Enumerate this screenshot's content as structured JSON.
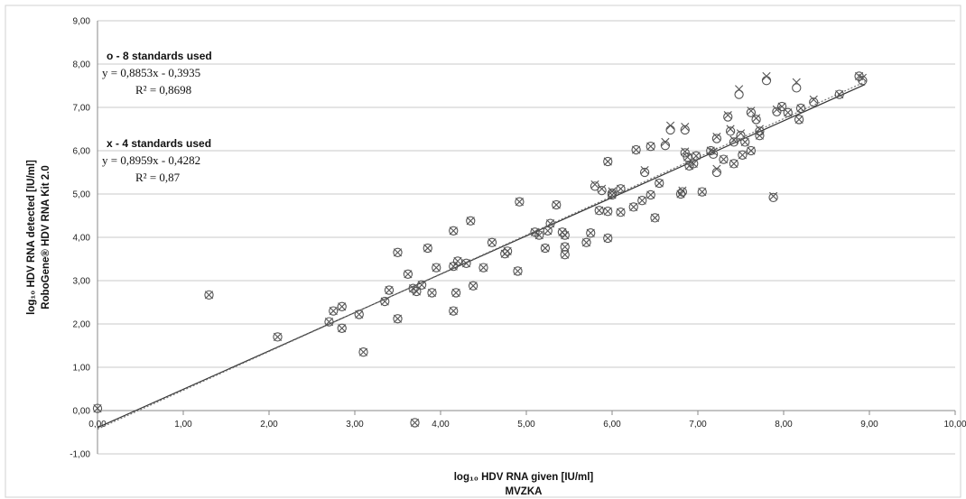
{
  "chart_data": {
    "type": "scatter",
    "title": "",
    "xlabel": "log₁₀ HDV RNA given [IU/ml]",
    "xlabel2": "MVZKA",
    "ylabel": "log₁₀ HDV RNA detected [IU/ml]",
    "ylabel2": "RoboGene® HDV RNA Kit 2.0",
    "xlim": [
      0,
      10
    ],
    "ylim": [
      -1,
      9
    ],
    "x_ticks": [
      "0,00",
      "1,00",
      "2,00",
      "3,00",
      "4,00",
      "5,00",
      "6,00",
      "7,00",
      "8,00",
      "9,00",
      "10,00"
    ],
    "y_ticks": [
      "-1,00",
      "0,00",
      "1,00",
      "2,00",
      "3,00",
      "4,00",
      "5,00",
      "6,00",
      "7,00",
      "8,00",
      "9,00"
    ],
    "grid": "horizontal",
    "annotations": [
      {
        "heading": "o - 8 standards used",
        "equation": "y = 0,8853x - 0,3935",
        "r2": "R² = 0,8698"
      },
      {
        "heading": "x - 4 standards used",
        "equation": "y = 0,8959x - 0,4282",
        "r2": "R² = 0,87"
      }
    ],
    "series": [
      {
        "marker": "o",
        "trendline": {
          "slope": 0.8853,
          "intercept": -0.3935,
          "style": "solid"
        },
        "points": [
          [
            0.0,
            0.05
          ],
          [
            1.3,
            2.67
          ],
          [
            2.1,
            1.7
          ],
          [
            2.7,
            2.05
          ],
          [
            2.75,
            2.3
          ],
          [
            2.85,
            2.4
          ],
          [
            2.85,
            1.9
          ],
          [
            3.05,
            2.22
          ],
          [
            3.1,
            1.35
          ],
          [
            3.35,
            2.52
          ],
          [
            3.4,
            2.78
          ],
          [
            3.5,
            3.65
          ],
          [
            3.5,
            2.12
          ],
          [
            3.62,
            3.15
          ],
          [
            3.68,
            2.82
          ],
          [
            3.72,
            2.75
          ],
          [
            3.78,
            2.9
          ],
          [
            3.85,
            3.75
          ],
          [
            3.9,
            2.72
          ],
          [
            3.95,
            3.3
          ],
          [
            4.15,
            4.15
          ],
          [
            4.15,
            3.33
          ],
          [
            4.15,
            2.3
          ],
          [
            4.18,
            2.72
          ],
          [
            4.2,
            3.45
          ],
          [
            4.3,
            3.4
          ],
          [
            4.35,
            4.38
          ],
          [
            4.38,
            2.88
          ],
          [
            4.5,
            3.3
          ],
          [
            4.6,
            3.88
          ],
          [
            4.75,
            3.62
          ],
          [
            4.78,
            3.68
          ],
          [
            4.9,
            3.22
          ],
          [
            4.92,
            4.82
          ],
          [
            5.1,
            4.12
          ],
          [
            5.15,
            4.05
          ],
          [
            5.22,
            3.75
          ],
          [
            5.25,
            4.15
          ],
          [
            5.28,
            4.32
          ],
          [
            5.35,
            4.75
          ],
          [
            5.42,
            4.12
          ],
          [
            5.45,
            4.05
          ],
          [
            5.45,
            3.78
          ],
          [
            5.45,
            3.6
          ],
          [
            5.7,
            3.88
          ],
          [
            5.75,
            4.1
          ],
          [
            5.8,
            5.18
          ],
          [
            5.85,
            4.62
          ],
          [
            5.88,
            5.08
          ],
          [
            5.95,
            5.75
          ],
          [
            5.95,
            4.6
          ],
          [
            5.95,
            3.98
          ],
          [
            6.0,
            5.02
          ],
          [
            6.0,
            4.98
          ],
          [
            6.1,
            5.12
          ],
          [
            6.1,
            4.58
          ],
          [
            6.25,
            4.7
          ],
          [
            6.28,
            6.02
          ],
          [
            6.35,
            4.85
          ],
          [
            6.38,
            5.5
          ],
          [
            6.45,
            6.1
          ],
          [
            6.45,
            4.98
          ],
          [
            6.5,
            4.45
          ],
          [
            6.55,
            5.25
          ],
          [
            6.62,
            6.12
          ],
          [
            6.68,
            6.48
          ],
          [
            6.8,
            5.0
          ],
          [
            6.82,
            5.05
          ],
          [
            6.85,
            6.48
          ],
          [
            6.85,
            5.95
          ],
          [
            6.88,
            5.85
          ],
          [
            6.9,
            5.65
          ],
          [
            6.95,
            5.7
          ],
          [
            6.98,
            5.88
          ],
          [
            7.05,
            5.05
          ],
          [
            7.15,
            6.0
          ],
          [
            7.18,
            5.92
          ],
          [
            7.22,
            5.5
          ],
          [
            7.22,
            6.28
          ],
          [
            7.3,
            5.8
          ],
          [
            7.35,
            6.78
          ],
          [
            7.38,
            6.45
          ],
          [
            7.42,
            5.7
          ],
          [
            7.42,
            6.2
          ],
          [
            7.48,
            7.3
          ],
          [
            7.5,
            6.35
          ],
          [
            7.52,
            5.9
          ],
          [
            7.55,
            6.2
          ],
          [
            7.62,
            6.0
          ],
          [
            7.62,
            6.88
          ],
          [
            7.68,
            6.72
          ],
          [
            7.72,
            6.45
          ],
          [
            7.72,
            6.35
          ],
          [
            7.8,
            7.62
          ],
          [
            7.88,
            4.92
          ],
          [
            7.92,
            6.9
          ],
          [
            7.98,
            7.02
          ],
          [
            8.05,
            6.88
          ],
          [
            8.15,
            7.45
          ],
          [
            8.18,
            6.72
          ],
          [
            8.2,
            6.98
          ],
          [
            8.35,
            7.12
          ],
          [
            8.65,
            7.3
          ],
          [
            8.88,
            7.72
          ],
          [
            8.92,
            7.62
          ],
          [
            3.7,
            -0.28
          ]
        ]
      },
      {
        "marker": "x",
        "trendline": {
          "slope": 0.8959,
          "intercept": -0.4282,
          "style": "dotted"
        },
        "points": [
          [
            0.0,
            0.05
          ],
          [
            1.3,
            2.67
          ],
          [
            2.1,
            1.7
          ],
          [
            2.7,
            2.05
          ],
          [
            2.75,
            2.3
          ],
          [
            2.85,
            2.4
          ],
          [
            2.85,
            1.9
          ],
          [
            3.05,
            2.22
          ],
          [
            3.1,
            1.35
          ],
          [
            3.35,
            2.52
          ],
          [
            3.4,
            2.78
          ],
          [
            3.5,
            3.65
          ],
          [
            3.5,
            2.12
          ],
          [
            3.62,
            3.15
          ],
          [
            3.68,
            2.82
          ],
          [
            3.72,
            2.75
          ],
          [
            3.78,
            2.9
          ],
          [
            3.85,
            3.75
          ],
          [
            3.9,
            2.72
          ],
          [
            3.95,
            3.3
          ],
          [
            4.15,
            4.15
          ],
          [
            4.15,
            3.33
          ],
          [
            4.15,
            2.3
          ],
          [
            4.18,
            2.72
          ],
          [
            4.2,
            3.45
          ],
          [
            4.3,
            3.4
          ],
          [
            4.35,
            4.38
          ],
          [
            4.38,
            2.88
          ],
          [
            4.5,
            3.3
          ],
          [
            4.6,
            3.88
          ],
          [
            4.75,
            3.62
          ],
          [
            4.78,
            3.68
          ],
          [
            4.9,
            3.22
          ],
          [
            4.92,
            4.82
          ],
          [
            5.1,
            4.12
          ],
          [
            5.15,
            4.05
          ],
          [
            5.22,
            3.75
          ],
          [
            5.25,
            4.15
          ],
          [
            5.28,
            4.32
          ],
          [
            5.35,
            4.75
          ],
          [
            5.42,
            4.12
          ],
          [
            5.45,
            4.05
          ],
          [
            5.45,
            3.78
          ],
          [
            5.45,
            3.6
          ],
          [
            5.7,
            3.88
          ],
          [
            5.75,
            4.1
          ],
          [
            5.8,
            5.22
          ],
          [
            5.85,
            4.62
          ],
          [
            5.88,
            5.12
          ],
          [
            5.95,
            5.75
          ],
          [
            5.95,
            4.6
          ],
          [
            5.95,
            3.98
          ],
          [
            6.0,
            5.06
          ],
          [
            6.0,
            4.98
          ],
          [
            6.1,
            5.12
          ],
          [
            6.1,
            4.58
          ],
          [
            6.25,
            4.7
          ],
          [
            6.28,
            6.02
          ],
          [
            6.35,
            4.85
          ],
          [
            6.38,
            5.55
          ],
          [
            6.45,
            6.1
          ],
          [
            6.45,
            4.98
          ],
          [
            6.5,
            4.45
          ],
          [
            6.55,
            5.25
          ],
          [
            6.62,
            6.2
          ],
          [
            6.68,
            6.58
          ],
          [
            6.8,
            5.0
          ],
          [
            6.82,
            5.08
          ],
          [
            6.85,
            6.55
          ],
          [
            6.85,
            5.98
          ],
          [
            6.88,
            5.85
          ],
          [
            6.9,
            5.65
          ],
          [
            6.95,
            5.7
          ],
          [
            6.98,
            5.88
          ],
          [
            7.05,
            5.05
          ],
          [
            7.15,
            6.0
          ],
          [
            7.18,
            5.98
          ],
          [
            7.22,
            5.58
          ],
          [
            7.22,
            6.32
          ],
          [
            7.3,
            5.8
          ],
          [
            7.35,
            6.82
          ],
          [
            7.38,
            6.5
          ],
          [
            7.42,
            5.7
          ],
          [
            7.42,
            6.25
          ],
          [
            7.48,
            7.42
          ],
          [
            7.5,
            6.4
          ],
          [
            7.52,
            5.9
          ],
          [
            7.55,
            6.2
          ],
          [
            7.62,
            6.0
          ],
          [
            7.62,
            6.92
          ],
          [
            7.68,
            6.75
          ],
          [
            7.72,
            6.5
          ],
          [
            7.72,
            6.35
          ],
          [
            7.8,
            7.72
          ],
          [
            7.88,
            4.95
          ],
          [
            7.92,
            6.95
          ],
          [
            7.98,
            7.02
          ],
          [
            8.05,
            6.88
          ],
          [
            8.15,
            7.58
          ],
          [
            8.18,
            6.72
          ],
          [
            8.2,
            6.98
          ],
          [
            8.35,
            7.18
          ],
          [
            8.65,
            7.3
          ],
          [
            8.88,
            7.72
          ],
          [
            8.92,
            7.68
          ],
          [
            3.7,
            -0.28
          ]
        ]
      }
    ]
  },
  "colors": {
    "marker": "#555555",
    "trendline_solid": "#333333",
    "trendline_dotted": "#777777",
    "grid": "#c8c8c8",
    "frame": "#d0d0d0"
  }
}
